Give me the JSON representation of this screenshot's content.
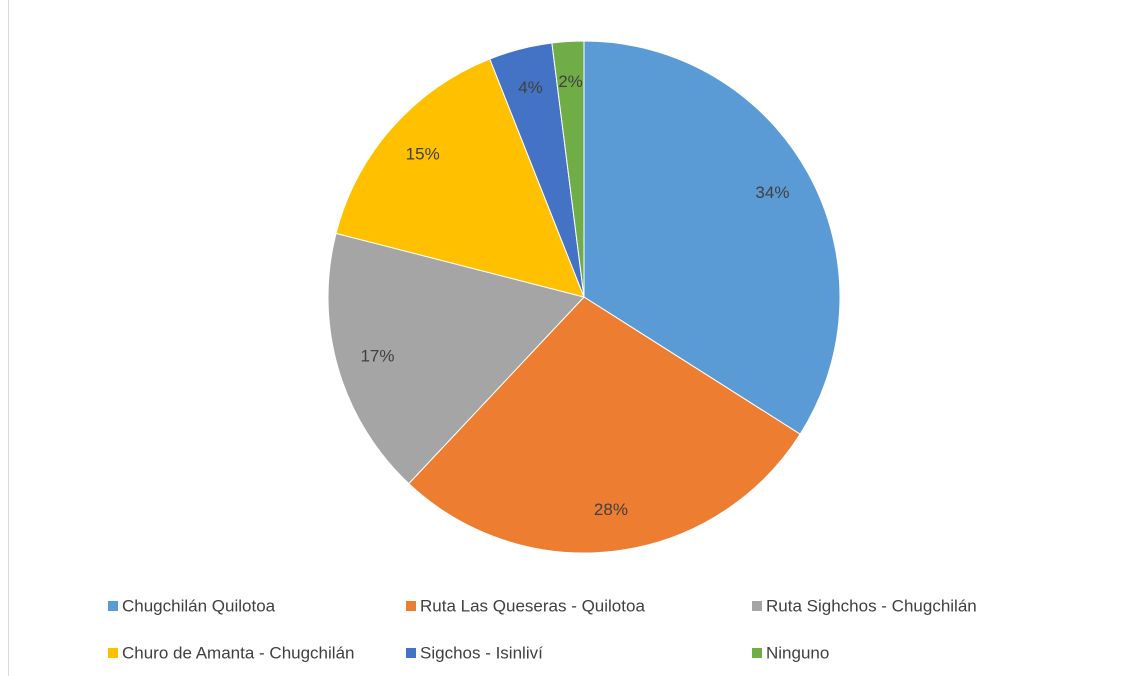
{
  "chart_data": {
    "type": "pie",
    "categories": [
      "Chugchilán Quilotoa",
      "Ruta Las Queseras - Quilotoa",
      "Ruta Sighchos - Chugchilán",
      "Churo de Amanta - Chugchilán",
      "Sigchos - Isinliví",
      "Ninguno"
    ],
    "values": [
      34,
      28,
      17,
      15,
      4,
      2
    ],
    "value_labels": [
      "34%",
      "28%",
      "17%",
      "15%",
      "4%",
      "2%"
    ],
    "colors": [
      "#5b9bd5",
      "#ed7d31",
      "#a5a5a5",
      "#ffc000",
      "#4472c4",
      "#70ad47"
    ],
    "legend": "bottom"
  }
}
